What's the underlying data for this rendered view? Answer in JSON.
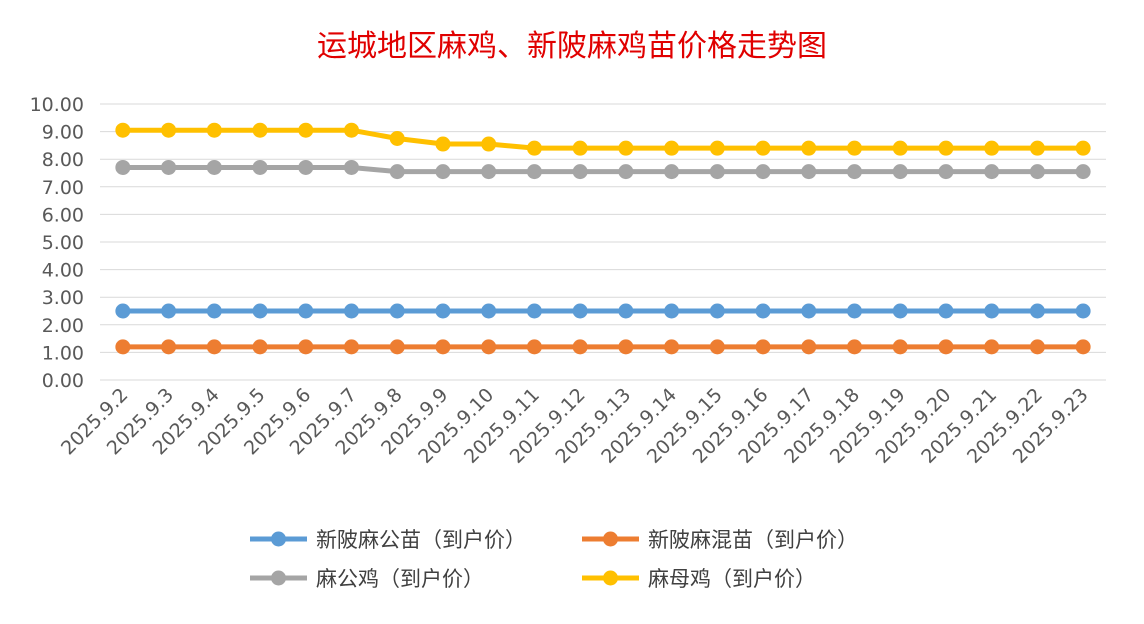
{
  "chart_data": {
    "type": "line",
    "title": "运城地区麻鸡、新陂麻鸡苗价格走势图",
    "xlabel": "",
    "ylabel": "",
    "ylim": [
      0,
      10
    ],
    "y_ticks": [
      "0.00",
      "1.00",
      "2.00",
      "3.00",
      "4.00",
      "5.00",
      "6.00",
      "7.00",
      "8.00",
      "9.00",
      "10.00"
    ],
    "grid": true,
    "legend_position": "bottom",
    "categories": [
      "2025.9.2",
      "2025.9.3",
      "2025.9.4",
      "2025.9.5",
      "2025.9.6",
      "2025.9.7",
      "2025.9.8",
      "2025.9.9",
      "2025.9.10",
      "2025.9.11",
      "2025.9.12",
      "2025.9.13",
      "2025.9.14",
      "2025.9.15",
      "2025.9.16",
      "2025.9.17",
      "2025.9.18",
      "2025.9.19",
      "2025.9.20",
      "2025.9.21",
      "2025.9.22",
      "2025.9.23"
    ],
    "series": [
      {
        "name": "新陂麻公苗（到户价）",
        "color": "#5b9bd5",
        "values": [
          2.5,
          2.5,
          2.5,
          2.5,
          2.5,
          2.5,
          2.5,
          2.5,
          2.5,
          2.5,
          2.5,
          2.5,
          2.5,
          2.5,
          2.5,
          2.5,
          2.5,
          2.5,
          2.5,
          2.5,
          2.5,
          2.5
        ]
      },
      {
        "name": "新陂麻混苗（到户价）",
        "color": "#ed7d31",
        "values": [
          1.2,
          1.2,
          1.2,
          1.2,
          1.2,
          1.2,
          1.2,
          1.2,
          1.2,
          1.2,
          1.2,
          1.2,
          1.2,
          1.2,
          1.2,
          1.2,
          1.2,
          1.2,
          1.2,
          1.2,
          1.2,
          1.2
        ]
      },
      {
        "name": "麻公鸡（到户价）",
        "color": "#a5a5a5",
        "values": [
          7.7,
          7.7,
          7.7,
          7.7,
          7.7,
          7.7,
          7.55,
          7.55,
          7.55,
          7.55,
          7.55,
          7.55,
          7.55,
          7.55,
          7.55,
          7.55,
          7.55,
          7.55,
          7.55,
          7.55,
          7.55,
          7.55
        ]
      },
      {
        "name": "麻母鸡（到户价）",
        "color": "#ffc000",
        "values": [
          9.05,
          9.05,
          9.05,
          9.05,
          9.05,
          9.05,
          8.75,
          8.55,
          8.55,
          8.4,
          8.4,
          8.4,
          8.4,
          8.4,
          8.4,
          8.4,
          8.4,
          8.4,
          8.4,
          8.4,
          8.4,
          8.4
        ]
      }
    ]
  }
}
